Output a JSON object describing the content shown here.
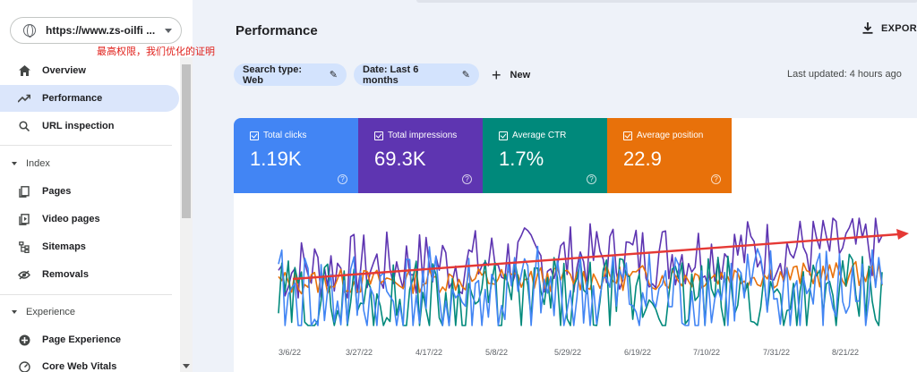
{
  "sidebar": {
    "property_url": "https://www.zs-oilfi ...",
    "annotation": "最高权限，我们优化的证明",
    "items": [
      {
        "label": "Overview",
        "icon": "home-icon"
      },
      {
        "label": "Performance",
        "icon": "trending-up-icon",
        "active": true
      },
      {
        "label": "URL inspection",
        "icon": "search-icon"
      }
    ],
    "index_section": "Index",
    "index_items": [
      {
        "label": "Pages",
        "icon": "pages-icon"
      },
      {
        "label": "Video pages",
        "icon": "video-pages-icon"
      },
      {
        "label": "Sitemaps",
        "icon": "sitemap-icon"
      },
      {
        "label": "Removals",
        "icon": "removals-icon"
      }
    ],
    "experience_section": "Experience",
    "experience_items": [
      {
        "label": "Page Experience",
        "icon": "page-experience-icon"
      },
      {
        "label": "Core Web Vitals",
        "icon": "core-web-vitals-icon"
      }
    ]
  },
  "header": {
    "title": "Performance",
    "export_label": "EXPORT"
  },
  "filters": {
    "search_type": "Search type: Web",
    "date": "Date: Last 6 months",
    "new_label": "New",
    "last_updated": "Last updated: 4 hours ago"
  },
  "metrics": [
    {
      "label": "Total clicks",
      "value": "1.19K",
      "color": "#4285f4"
    },
    {
      "label": "Total impressions",
      "value": "69.3K",
      "color": "#5e35b1"
    },
    {
      "label": "Average CTR",
      "value": "1.7%",
      "color": "#00897b"
    },
    {
      "label": "Average position",
      "value": "22.9",
      "color": "#e8710a"
    }
  ],
  "colors": {
    "trend_arrow": "#e53935",
    "active_nav": "#dbe6fb",
    "chip": "#d3e3fd"
  },
  "chart_data": {
    "type": "line",
    "x_ticks": [
      "3/6/22",
      "3/27/22",
      "4/17/22",
      "5/8/22",
      "5/29/22",
      "6/19/22",
      "7/10/22",
      "7/31/22",
      "8/21/22"
    ],
    "axis_labels_shown": false,
    "series": [
      {
        "metric": "Total impressions",
        "color": "#5e35b1",
        "seed": 7,
        "base": 0.52,
        "trend": 0.22,
        "amp": 0.32
      },
      {
        "metric": "Average position",
        "color": "#e8710a",
        "seed": 13,
        "base": 0.4,
        "trend": 0.08,
        "amp": 0.12
      },
      {
        "metric": "Average CTR",
        "color": "#00897b",
        "seed": 29,
        "base": 0.22,
        "trend": 0.05,
        "amp": 0.4
      },
      {
        "metric": "Total clicks",
        "color": "#4285f4",
        "seed": 41,
        "base": 0.24,
        "trend": 0.06,
        "amp": 0.48
      }
    ],
    "annotation": "upward trend arrow"
  }
}
